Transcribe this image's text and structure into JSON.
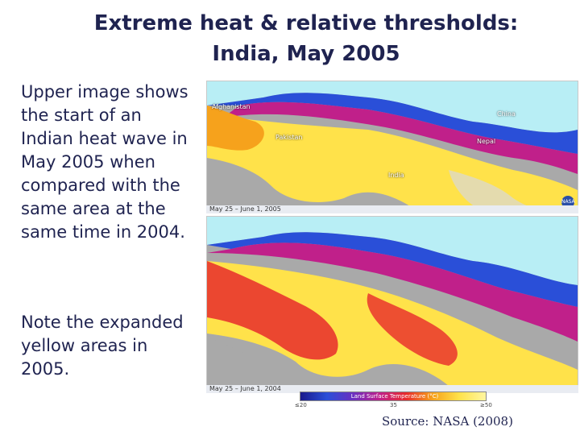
{
  "slide": {
    "title_line1": "Extreme heat & relative thresholds:",
    "title_line2": "India, May 2005",
    "paragraph1": "Upper image shows the start of an Indian heat wave in May 2005 when compared with the same area at the same time in 2004.",
    "paragraph2": "Note the expanded yellow areas in 2005.",
    "source": "Source: NASA (2008)"
  },
  "maps": {
    "top": {
      "date_label": "May 25 – June 1, 2005",
      "labels": {
        "afghanistan": "Afghanistan",
        "pakistan": "Pakistan",
        "china": "China",
        "nepal": "Nepal",
        "india": "India"
      }
    },
    "bottom": {
      "date_label": "May 25 – June 1, 2004"
    },
    "legend": {
      "title": "Land Surface Temperature (°C)",
      "ticks": [
        "≤20",
        "35",
        "≥50"
      ]
    },
    "colors": {
      "ocean": "#a9a9a9",
      "hot": "#ffe24a",
      "warm": "#f6a21c",
      "mid": "#e82b2b",
      "cool": "#6b2fc0",
      "cold": "#2a4fd8",
      "snow": "#b8eef5"
    }
  }
}
